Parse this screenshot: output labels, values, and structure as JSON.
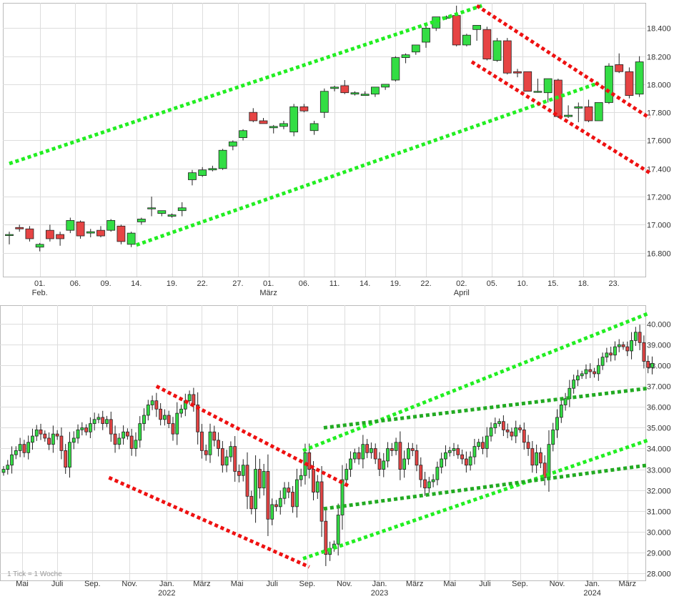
{
  "colors": {
    "up": "#33dd44",
    "down": "#e64444",
    "wick": "#222222",
    "grid": "#dddddd",
    "frame": "#bbbbbb",
    "trend_up": "#22ee22",
    "trend_up_dark": "#22aa22",
    "trend_down": "#ee1111"
  },
  "chart_data": [
    {
      "type": "candlestick",
      "period": "daily",
      "y_axis_position": "right",
      "ylim": [
        16630,
        18580
      ],
      "yticks": [
        16800,
        17000,
        17200,
        17400,
        17600,
        17800,
        18000,
        18200,
        18400
      ],
      "ytick_labels": [
        "16.800",
        "17.000",
        "17.200",
        "17.400",
        "17.600",
        "17.800",
        "18.000",
        "18.200",
        "18.400"
      ],
      "xticks": [
        {
          "label": "01.",
          "sub": "Feb."
        },
        {
          "label": "06.",
          "sub": ""
        },
        {
          "label": "09.",
          "sub": ""
        },
        {
          "label": "14.",
          "sub": ""
        },
        {
          "label": "19.",
          "sub": ""
        },
        {
          "label": "22.",
          "sub": ""
        },
        {
          "label": "27.",
          "sub": ""
        },
        {
          "label": "01.",
          "sub": "März"
        },
        {
          "label": "06.",
          "sub": ""
        },
        {
          "label": "11.",
          "sub": ""
        },
        {
          "label": "14.",
          "sub": ""
        },
        {
          "label": "19.",
          "sub": ""
        },
        {
          "label": "22.",
          "sub": ""
        },
        {
          "label": "02.",
          "sub": "April"
        },
        {
          "label": "05.",
          "sub": ""
        },
        {
          "label": "10.",
          "sub": ""
        },
        {
          "label": "15.",
          "sub": ""
        },
        {
          "label": "18.",
          "sub": ""
        },
        {
          "label": "23.",
          "sub": ""
        }
      ],
      "candles": [
        [
          16930,
          16950,
          16860,
          16930
        ],
        [
          16980,
          17000,
          16950,
          16970
        ],
        [
          16970,
          16990,
          16880,
          16900
        ],
        [
          16840,
          16870,
          16810,
          16860
        ],
        [
          16960,
          17000,
          16880,
          16900
        ],
        [
          16930,
          16950,
          16850,
          16900
        ],
        [
          16960,
          17050,
          16940,
          17030
        ],
        [
          17020,
          17030,
          16900,
          16920
        ],
        [
          16940,
          16970,
          16910,
          16950
        ],
        [
          16960,
          16990,
          16910,
          16920
        ],
        [
          16960,
          17040,
          16950,
          17030
        ],
        [
          16990,
          17000,
          16860,
          16880
        ],
        [
          16860,
          16950,
          16840,
          16940
        ],
        [
          17020,
          17050,
          17000,
          17040
        ],
        [
          17120,
          17200,
          17060,
          17120
        ],
        [
          17080,
          17100,
          17060,
          17100
        ],
        [
          17060,
          17080,
          17050,
          17070
        ],
        [
          17100,
          17160,
          17060,
          17120
        ],
        [
          17320,
          17390,
          17280,
          17370
        ],
        [
          17350,
          17410,
          17340,
          17390
        ],
        [
          17390,
          17420,
          17380,
          17400
        ],
        [
          17400,
          17540,
          17390,
          17530
        ],
        [
          17560,
          17600,
          17530,
          17590
        ],
        [
          17620,
          17680,
          17600,
          17670
        ],
        [
          17800,
          17830,
          17730,
          17740
        ],
        [
          17740,
          17760,
          17720,
          17720
        ],
        [
          17690,
          17710,
          17650,
          17700
        ],
        [
          17700,
          17740,
          17680,
          17720
        ],
        [
          17660,
          17860,
          17630,
          17840
        ],
        [
          17840,
          17860,
          17800,
          17810
        ],
        [
          17670,
          17740,
          17640,
          17720
        ],
        [
          17800,
          17970,
          17760,
          17950
        ],
        [
          17970,
          17990,
          17950,
          17980
        ],
        [
          17990,
          18030,
          17930,
          17940
        ],
        [
          17930,
          17950,
          17920,
          17940
        ],
        [
          17920,
          17950,
          17920,
          17930
        ],
        [
          17930,
          17980,
          17910,
          17980
        ],
        [
          17980,
          18000,
          17960,
          18000
        ],
        [
          18030,
          18200,
          18020,
          18190
        ],
        [
          18190,
          18220,
          18150,
          18210
        ],
        [
          18230,
          18280,
          18210,
          18280
        ],
        [
          18300,
          18420,
          18260,
          18400
        ],
        [
          18400,
          18480,
          18380,
          18480
        ],
        [
          18470,
          18490,
          18460,
          18480
        ],
        [
          18490,
          18560,
          18270,
          18280
        ],
        [
          18280,
          18360,
          18270,
          18350
        ],
        [
          18390,
          18420,
          18310,
          18420
        ],
        [
          18390,
          18410,
          18170,
          18180
        ],
        [
          18170,
          18330,
          18160,
          18310
        ],
        [
          18310,
          18330,
          18070,
          18080
        ],
        [
          18090,
          18110,
          18050,
          18080
        ],
        [
          18090,
          18090,
          17950,
          17950
        ],
        [
          17950,
          18040,
          17940,
          17950
        ],
        [
          17940,
          18040,
          17870,
          18040
        ],
        [
          18030,
          18040,
          17760,
          17770
        ],
        [
          17770,
          17850,
          17760,
          17780
        ],
        [
          17830,
          17870,
          17730,
          17840
        ],
        [
          17840,
          17890,
          17730,
          17740
        ],
        [
          17740,
          17870,
          17740,
          17870
        ],
        [
          17870,
          18150,
          17860,
          18130
        ],
        [
          18140,
          18220,
          18080,
          18090
        ],
        [
          18090,
          18120,
          17900,
          17920
        ],
        [
          17930,
          18200,
          17910,
          18160
        ]
      ],
      "trendlines": [
        {
          "color": "up",
          "points": [
            [
              0,
              17435
            ],
            [
              46.5,
              18560
            ]
          ]
        },
        {
          "color": "up",
          "points": [
            [
              12.5,
              16855
            ],
            [
              58,
              18010
            ]
          ]
        },
        {
          "color": "down",
          "points": [
            [
              46,
              18560
            ],
            [
              63,
              17760
            ]
          ]
        },
        {
          "color": "down",
          "points": [
            [
              45.5,
              18160
            ],
            [
              63,
              17370
            ]
          ]
        }
      ]
    },
    {
      "type": "candlestick",
      "period": "weekly",
      "note": "1 Tick = 1 Woche",
      "y_axis_position": "right",
      "ylim": [
        27650,
        40900
      ],
      "yticks": [
        28000,
        29000,
        30000,
        31000,
        32000,
        33000,
        34000,
        35000,
        36000,
        37000,
        38000,
        39000,
        40000
      ],
      "ytick_labels": [
        "28.000",
        "29.000",
        "30.000",
        "31.000",
        "32.000",
        "33.000",
        "34.000",
        "35.000",
        "36.000",
        "37.000",
        "38.000",
        "39.000",
        "40.000"
      ],
      "xticks": [
        {
          "label": "Mai",
          "sub": ""
        },
        {
          "label": "Juli",
          "sub": ""
        },
        {
          "label": "Sep.",
          "sub": ""
        },
        {
          "label": "Nov.",
          "sub": ""
        },
        {
          "label": "Jan.",
          "sub": "2022"
        },
        {
          "label": "März",
          "sub": ""
        },
        {
          "label": "Mai",
          "sub": ""
        },
        {
          "label": "Juli",
          "sub": ""
        },
        {
          "label": "Sep.",
          "sub": ""
        },
        {
          "label": "Nov.",
          "sub": ""
        },
        {
          "label": "Jan.",
          "sub": "2023"
        },
        {
          "label": "März",
          "sub": ""
        },
        {
          "label": "Mai",
          "sub": ""
        },
        {
          "label": "Juli",
          "sub": ""
        },
        {
          "label": "Sep.",
          "sub": ""
        },
        {
          "label": "Nov.",
          "sub": ""
        },
        {
          "label": "Jan.",
          "sub": "2024"
        },
        {
          "label": "März",
          "sub": ""
        }
      ],
      "closes": [
        33000,
        33200,
        33700,
        33900,
        34200,
        33800,
        34300,
        34600,
        34900,
        34700,
        34500,
        34200,
        34700,
        34600,
        33900,
        33100,
        34300,
        34500,
        34900,
        35000,
        34800,
        35200,
        35400,
        35500,
        35200,
        35400,
        34700,
        34200,
        34500,
        34800,
        34600,
        34000,
        34400,
        35200,
        35600,
        36100,
        36300,
        35900,
        35400,
        35600,
        35200,
        34700,
        35700,
        35900,
        36300,
        36600,
        36100,
        34800,
        33900,
        33700,
        34800,
        34400,
        34000,
        33200,
        33600,
        34100,
        32900,
        32700,
        33200,
        31700,
        31100,
        33000,
        32100,
        32900,
        30600,
        31300,
        31200,
        31600,
        32100,
        31900,
        31200,
        32500,
        32700,
        33800,
        33000,
        31900,
        32400,
        30500,
        28900,
        29200,
        29400,
        30800,
        32500,
        33000,
        33500,
        33800,
        33500,
        34200,
        33800,
        34000,
        33500,
        33000,
        33400,
        34000,
        33900,
        34300,
        33000,
        33500,
        34000,
        33900,
        33200,
        32500,
        32100,
        32400,
        32500,
        33100,
        33500,
        33800,
        33900,
        34000,
        33700,
        33500,
        33200,
        33600,
        34100,
        34300,
        34000,
        34600,
        35000,
        35200,
        35300,
        34900,
        34800,
        34600,
        35000,
        34900,
        34300,
        34000,
        33200,
        33800,
        33300,
        32600,
        34200,
        34900,
        35500,
        36100,
        36400,
        36900,
        37300,
        37500,
        37600,
        37800,
        37700,
        37600,
        38000,
        38400,
        38600,
        38500,
        38900,
        39000,
        38900,
        38700,
        39200,
        39600,
        39100,
        38200,
        37900,
        38100
      ],
      "trendlines": [
        {
          "color": "down",
          "points": [
            [
              37,
              37000
            ],
            [
              83.5,
              32200
            ]
          ]
        },
        {
          "color": "down",
          "points": [
            [
              25.5,
              32600
            ],
            [
              74,
              28300
            ]
          ]
        },
        {
          "color": "up",
          "points": [
            [
              72.5,
              28700
            ],
            [
              156,
              34400
            ]
          ]
        },
        {
          "color": "up",
          "points": [
            [
              72.5,
              33900
            ],
            [
              156,
              40500
            ]
          ]
        },
        {
          "color": "up_dark",
          "points": [
            [
              77.5,
              35000
            ],
            [
              156,
              36900
            ]
          ]
        },
        {
          "color": "up_dark",
          "points": [
            [
              77.5,
              31100
            ],
            [
              156,
              33200
            ]
          ]
        }
      ]
    }
  ]
}
